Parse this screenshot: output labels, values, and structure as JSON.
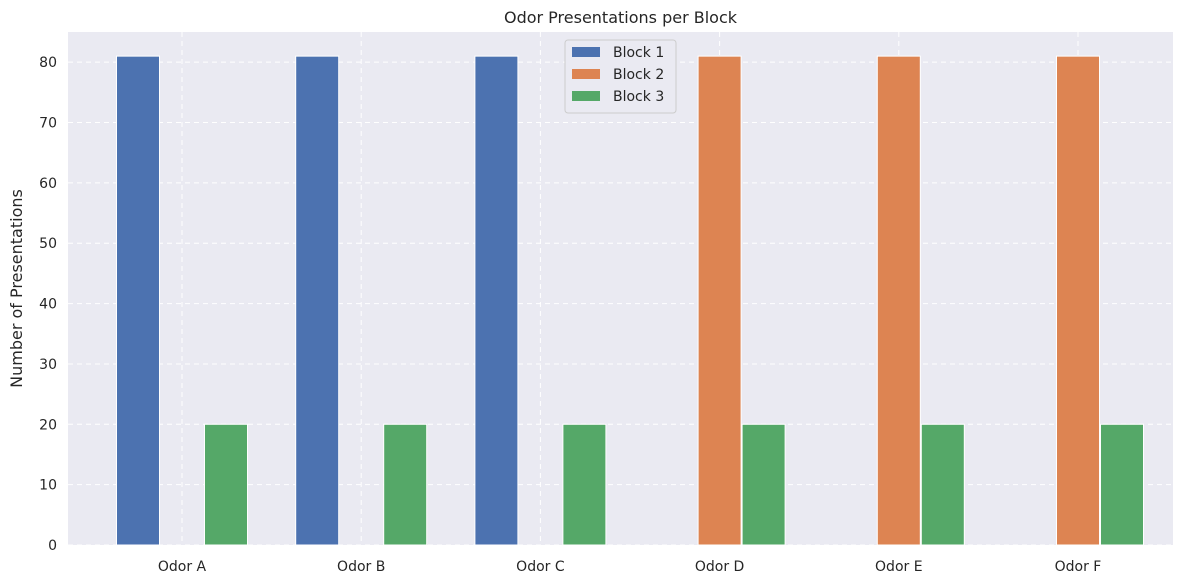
{
  "chart_data": {
    "type": "bar",
    "title": "Odor Presentations per Block",
    "xlabel": "",
    "ylabel": "Number of Presentations",
    "categories": [
      "Odor A",
      "Odor B",
      "Odor C",
      "Odor D",
      "Odor E",
      "Odor F"
    ],
    "series": [
      {
        "name": "Block 1",
        "color": "#4c72b0",
        "values": [
          81,
          81,
          81,
          0,
          0,
          0
        ]
      },
      {
        "name": "Block 2",
        "color": "#dd8452",
        "values": [
          0,
          0,
          0,
          81,
          81,
          81
        ]
      },
      {
        "name": "Block 3",
        "color": "#55a868",
        "values": [
          20,
          20,
          20,
          20,
          20,
          20
        ]
      }
    ],
    "ylim": [
      0,
      85
    ],
    "yticks": [
      0,
      10,
      20,
      30,
      40,
      50,
      60,
      70,
      80
    ],
    "grid": true,
    "grid_style": "dashed",
    "legend_position": "upper center",
    "background_color": "#eaeaf2"
  }
}
